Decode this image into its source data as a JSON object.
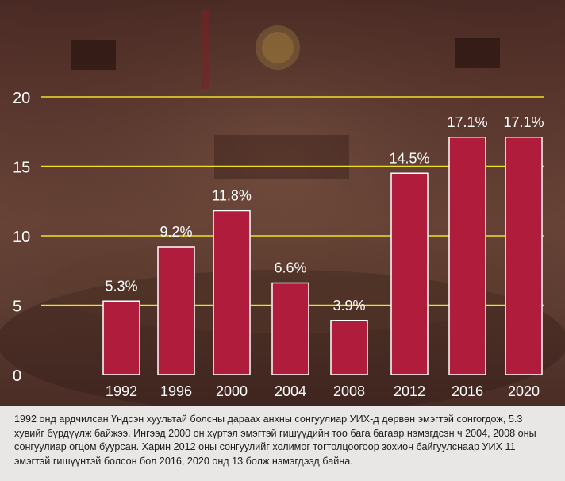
{
  "chart_data": {
    "type": "bar",
    "title": "",
    "xlabel": "",
    "ylabel": "",
    "categories": [
      "1992",
      "1996",
      "2000",
      "2004",
      "2008",
      "2012",
      "2016",
      "2020"
    ],
    "values": [
      5.3,
      9.2,
      11.8,
      6.6,
      3.9,
      14.5,
      17.1,
      17.1
    ],
    "data_labels": [
      "5.3%",
      "9.2%",
      "11.8%",
      "6.6%",
      "3.9%",
      "14.5%",
      "17.1%",
      "17.1%"
    ],
    "yticks": [
      "0",
      "5",
      "10",
      "15",
      "20"
    ],
    "ylim": [
      0,
      20
    ],
    "grid": true,
    "legend": "none",
    "colors": {
      "bar": "#b01c3c",
      "bar_border": "#ffffff",
      "grid": "#f0e020",
      "text": "#ffffff"
    }
  },
  "caption": "1992 онд ардчилсан Үндсэн хуультай болсны дараах анхны сонгуулиар УИХ-д дөрвөн эмэгтэй сонгогдож, 5.3 хувийг бүрдүүлж байжээ. Ингээд 2000 он хүртэл эмэгтэй гишүүдийн тоо бага багаар нэмэгдсэн ч 2004, 2008 оны сонгуулиар огцом буурсан. Харин 2012 оны сонгуулийг холимог тогтолцоогоор зохион байгуулснаар УИХ 11 эмэгтэй гишүүнтэй болсон бол 2016, 2020 онд 13 болж нэмэгдээд байна."
}
